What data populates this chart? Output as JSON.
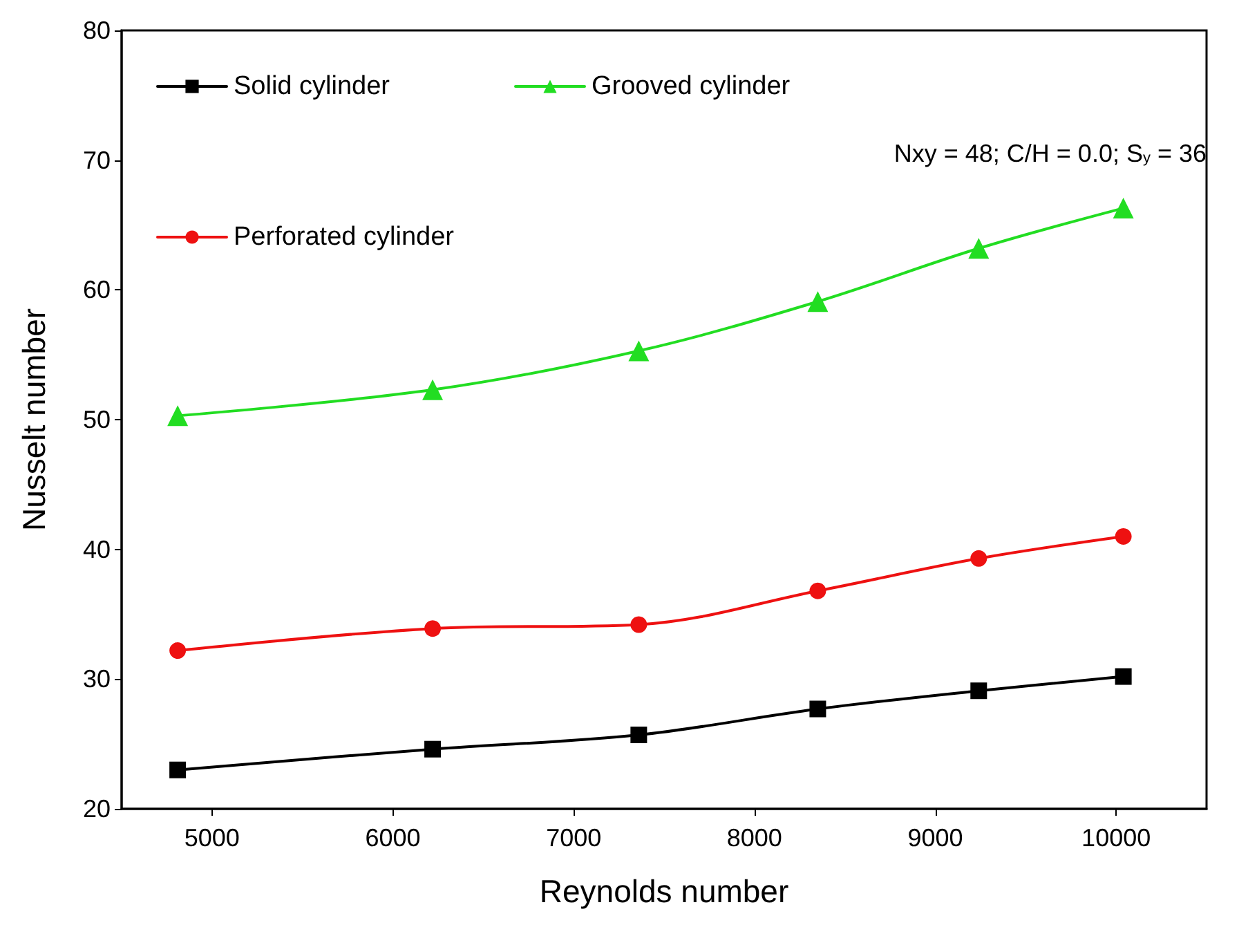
{
  "chart_data": {
    "type": "line",
    "xlabel": "Reynolds number",
    "ylabel": "Nusselt number",
    "x": [
      4810,
      6220,
      7360,
      8350,
      9240,
      10040
    ],
    "series": [
      {
        "name": "Solid cylinder",
        "color": "#000000",
        "marker": "square",
        "values": [
          23.0,
          24.6,
          25.7,
          27.7,
          29.1,
          30.2
        ]
      },
      {
        "name": "Grooved cylinder",
        "color": "#22dd22",
        "marker": "triangle",
        "values": [
          50.3,
          52.3,
          55.3,
          59.1,
          63.2,
          66.3
        ]
      },
      {
        "name": "Perforated cylinder",
        "color": "#ee1111",
        "marker": "circle",
        "values": [
          32.2,
          33.9,
          34.2,
          36.8,
          39.3,
          41.0
        ]
      }
    ],
    "xlim": [
      4500,
      10500
    ],
    "xticks": [
      5000,
      6000,
      7000,
      8000,
      9000,
      10000
    ],
    "ylim": [
      20,
      80
    ],
    "yticks": [
      20,
      30,
      40,
      50,
      60,
      70,
      80
    ],
    "annotations": [
      "Nxy = 48; C/H = 0.0; S$_{y}$ = 36"
    ],
    "legend": "top left",
    "grid": false,
    "line_style": "solid"
  }
}
